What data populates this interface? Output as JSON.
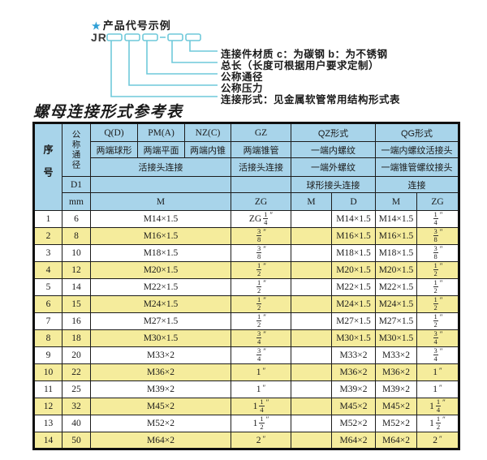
{
  "colors": {
    "header_bg": "#a8d4ea",
    "row_alt": "#f5ec9c",
    "diagram_line": "#6fc9da",
    "star": "#2f9fd6"
  },
  "diagram": {
    "star": "★",
    "title": "产品代号示例",
    "code_prefix": "JR",
    "labels": [
      "连接件材质  c：为碳钢  b：为不锈钢",
      "总长（长度可根据用户要求定制）",
      "公称通径",
      "公称压力",
      "连接形式：见金属软管常用结构形式表"
    ]
  },
  "table": {
    "title": "螺母连接形式参考表",
    "header": {
      "seq": "序号",
      "dn": "公称通径",
      "d1": "D1",
      "mm": "mm",
      "q": "Q(D)",
      "pm": "PM(A)",
      "nz": "NZ(C)",
      "gz": "GZ",
      "qz": "QZ形式",
      "qg": "QG形式",
      "q_sub": "两端球形",
      "pm_sub": "两端平面",
      "nz_sub": "两端内锥",
      "gz_sub": "两端锥管",
      "qz_sub1": "一端内螺纹",
      "qg_sub1": "一端内螺纹活接头",
      "union_conn": "活接头连接",
      "gz_conn": "活接头连接",
      "qz_sub2": "一端外螺纹",
      "qg_sub2": "一端锥管螺纹接头",
      "qz_conn": "球形接头连接",
      "qg_conn": "连接",
      "m_label": "M",
      "zg_label": "ZG",
      "qz_m": "M",
      "qz_d": "D",
      "qg_m": "M",
      "qg_zg": "ZG"
    },
    "rows": [
      {
        "no": "1",
        "dn": "6",
        "m": "M14×1.5",
        "gz": "ZG 1/4\"",
        "qz_m": "",
        "qz_d": "M14×1.5",
        "qg_m": "M14×1.5",
        "qg_zg": "1/4\""
      },
      {
        "no": "2",
        "dn": "8",
        "m": "M16×1.5",
        "gz": "3/8\"",
        "qz_m": "",
        "qz_d": "M16×1.5",
        "qg_m": "M16×1.5",
        "qg_zg": "3/8\""
      },
      {
        "no": "3",
        "dn": "10",
        "m": "M18×1.5",
        "gz": "3/8\"",
        "qz_m": "",
        "qz_d": "M18×1.5",
        "qg_m": "M18×1.5",
        "qg_zg": "3/8\""
      },
      {
        "no": "4",
        "dn": "12",
        "m": "M20×1.5",
        "gz": "1/2\"",
        "qz_m": "",
        "qz_d": "M20×1.5",
        "qg_m": "M20×1.5",
        "qg_zg": "1/2\""
      },
      {
        "no": "5",
        "dn": "14",
        "m": "M22×1.5",
        "gz": "1/2\"",
        "qz_m": "",
        "qz_d": "M22×1.5",
        "qg_m": "M22×1.5",
        "qg_zg": "1/2\""
      },
      {
        "no": "6",
        "dn": "15",
        "m": "M24×1.5",
        "gz": "1/2\"",
        "qz_m": "",
        "qz_d": "M24×1.5",
        "qg_m": "M24×1.5",
        "qg_zg": "1/2\""
      },
      {
        "no": "7",
        "dn": "16",
        "m": "M27×1.5",
        "gz": "1/2\"",
        "qz_m": "",
        "qz_d": "M27×1.5",
        "qg_m": "M27×1.5",
        "qg_zg": "1/2\""
      },
      {
        "no": "8",
        "dn": "18",
        "m": "M30×1.5",
        "gz": "3/4\"",
        "qz_m": "",
        "qz_d": "M30×1.5",
        "qg_m": "M30×1.5",
        "qg_zg": "3/4\""
      },
      {
        "no": "9",
        "dn": "20",
        "m": "M33×2",
        "gz": "3/4\"",
        "qz_m": "",
        "qz_d": "M33×2",
        "qg_m": "M33×2",
        "qg_zg": "3/4\""
      },
      {
        "no": "10",
        "dn": "22",
        "m": "M36×2",
        "gz": "1\"",
        "qz_m": "",
        "qz_d": "M36×2",
        "qg_m": "M36×2",
        "qg_zg": "1\""
      },
      {
        "no": "11",
        "dn": "25",
        "m": "M39×2",
        "gz": "1\"",
        "qz_m": "",
        "qz_d": "M39×2",
        "qg_m": "M39×2",
        "qg_zg": "1\""
      },
      {
        "no": "12",
        "dn": "32",
        "m": "M45×2",
        "gz": "1 1/4\"",
        "qz_m": "",
        "qz_d": "M45×2",
        "qg_m": "M45×2",
        "qg_zg": "1 1/4\""
      },
      {
        "no": "13",
        "dn": "40",
        "m": "M52×2",
        "gz": "1 1/2\"",
        "qz_m": "",
        "qz_d": "M52×2",
        "qg_m": "M52×2",
        "qg_zg": "1 1/2\""
      },
      {
        "no": "14",
        "dn": "50",
        "m": "M64×2",
        "gz": "2\"",
        "qz_m": "",
        "qz_d": "M64×2",
        "qg_m": "M64×2",
        "qg_zg": "2\""
      }
    ]
  }
}
